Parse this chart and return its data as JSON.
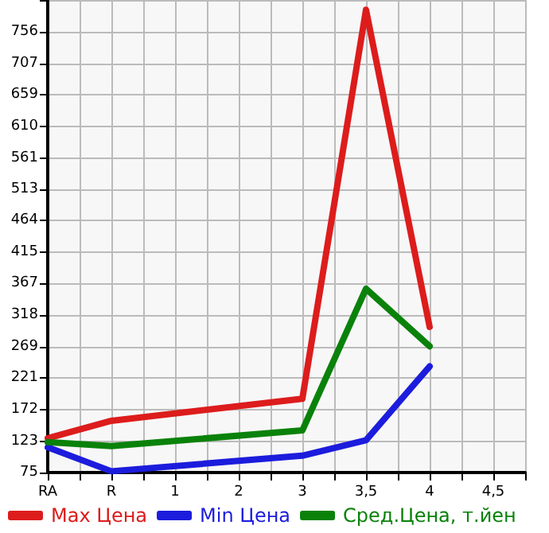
{
  "chart_data": {
    "type": "line",
    "categories": [
      "RA",
      null,
      "R",
      null,
      "1",
      null,
      "2",
      null,
      "3",
      null,
      "3,5",
      null,
      "4",
      null,
      "4,5",
      null
    ],
    "series": [
      {
        "name": "Max Цена",
        "color": "#dd1c1c",
        "values": [
          128,
          null,
          155,
          null,
          null,
          null,
          null,
          null,
          189,
          null,
          790,
          null,
          300,
          null,
          null,
          null
        ]
      },
      {
        "name": "Min Цена",
        "color": "#1c1cdd",
        "values": [
          114,
          null,
          77,
          null,
          null,
          null,
          null,
          null,
          101,
          null,
          125,
          null,
          239,
          null,
          null,
          null
        ]
      },
      {
        "name": "Сред.Цена, т.йен",
        "color": "#0a820a",
        "values": [
          122,
          null,
          116,
          null,
          null,
          null,
          null,
          null,
          140,
          null,
          359,
          null,
          270,
          null,
          null,
          null
        ]
      }
    ],
    "ylim": [
      75,
      805
    ],
    "yticks": [
      75,
      123,
      172,
      221,
      269,
      318,
      367,
      415,
      464,
      513,
      561,
      610,
      659,
      707,
      756,
      {
        "value": 805,
        "label": null
      }
    ],
    "grid": true,
    "legend": "bottom",
    "marker": "none",
    "line_style": "solid"
  }
}
